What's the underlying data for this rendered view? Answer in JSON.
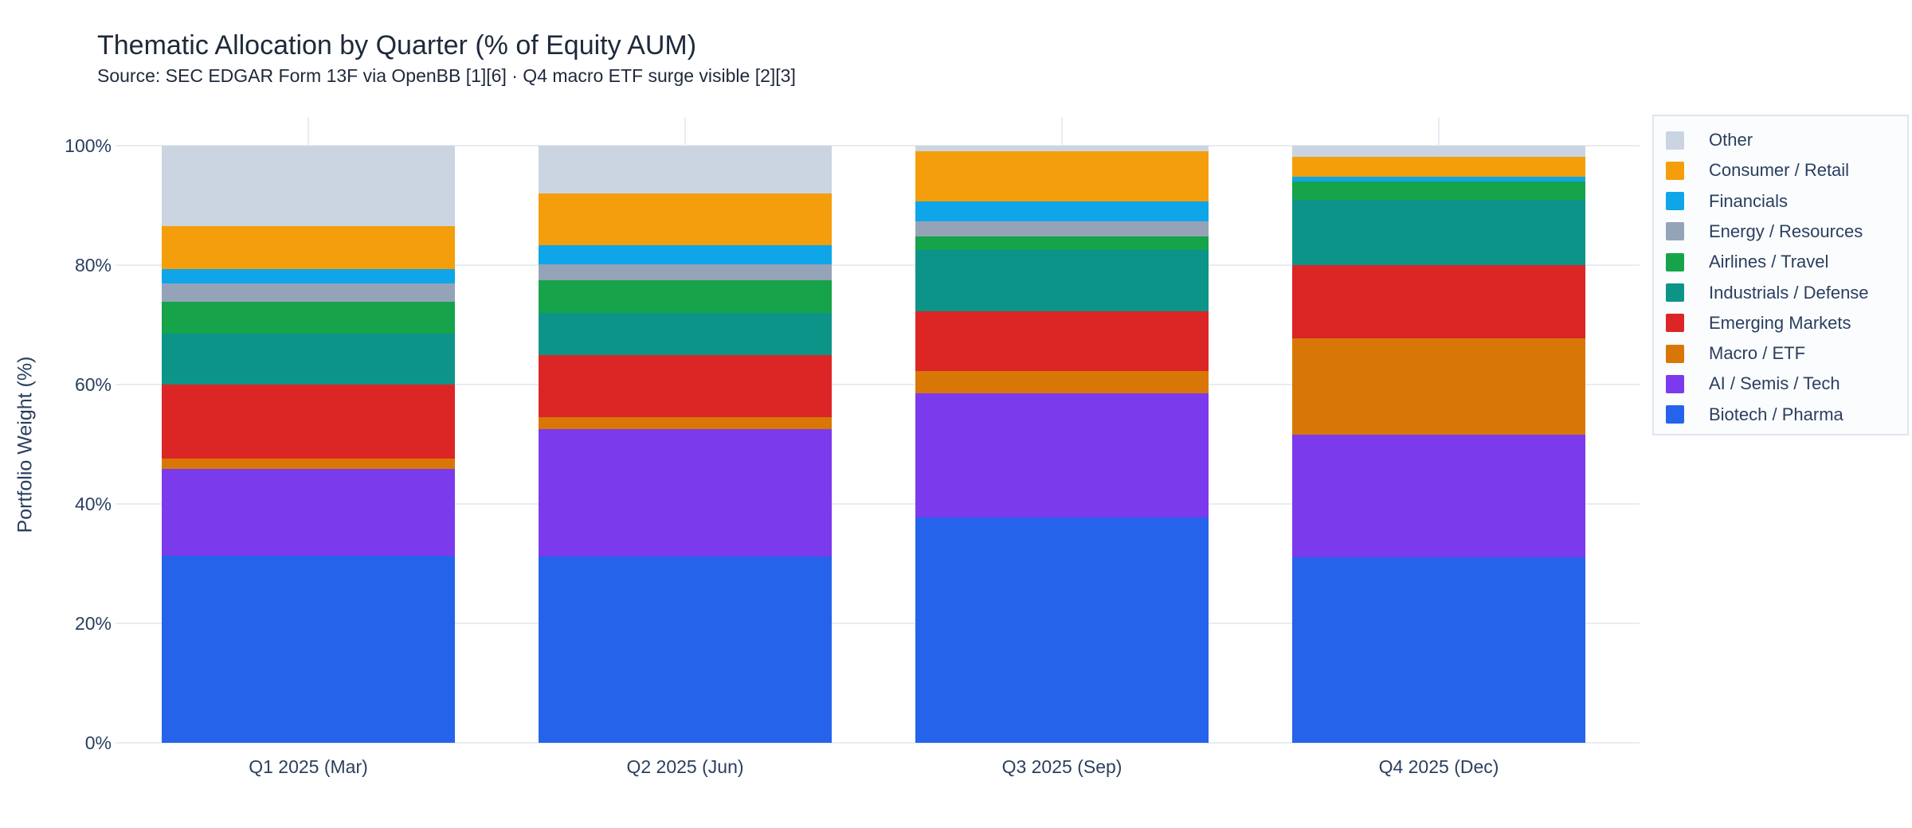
{
  "header": {
    "title": "Thematic Allocation by Quarter (% of Equity AUM)",
    "subtitle": "Source: SEC EDGAR Form 13F via OpenBB [1][6] · Q4 macro ETF surge visible [2][3]"
  },
  "y_axis": {
    "title": "Portfolio Weight (%)",
    "tick_values": [
      0,
      20,
      40,
      60,
      80,
      100
    ],
    "tick_labels": [
      "0%",
      "20%",
      "40%",
      "60%",
      "80%",
      "100%"
    ]
  },
  "chart_data": {
    "type": "bar",
    "stacked": true,
    "title": "Thematic Allocation by Quarter (% of Equity AUM)",
    "subtitle": "Source: SEC EDGAR Form 13F via OpenBB [1][6] · Q4 macro ETF surge visible [2][3]",
    "xlabel": "",
    "ylabel": "Portfolio Weight (%)",
    "ylim": [
      0,
      100
    ],
    "grid": true,
    "legend_position": "right",
    "legend_order": "top-of-stack-first",
    "categories": [
      "Q1 2025 (Mar)",
      "Q2 2025 (Jun)",
      "Q3 2025 (Sep)",
      "Q4 2025 (Dec)"
    ],
    "series": [
      {
        "name": "Biotech / Pharma",
        "color": "#2563EB",
        "values": [
          31.3,
          31.2,
          37.8,
          31.1
        ]
      },
      {
        "name": "AI / Semis / Tech",
        "color": "#7C3AED",
        "values": [
          14.6,
          21.4,
          20.7,
          20.5
        ]
      },
      {
        "name": "Macro / ETF",
        "color": "#D97706",
        "values": [
          1.7,
          2.0,
          3.8,
          16.2
        ]
      },
      {
        "name": "Emerging Markets",
        "color": "#DC2626",
        "values": [
          12.4,
          10.3,
          10.0,
          12.2
        ]
      },
      {
        "name": "Industrials / Defense",
        "color": "#0D9488",
        "values": [
          8.5,
          7.1,
          10.2,
          10.9
        ]
      },
      {
        "name": "Airlines / Travel",
        "color": "#16A34A",
        "values": [
          5.4,
          5.5,
          2.3,
          3.1
        ]
      },
      {
        "name": "Energy / Resources",
        "color": "#94A3B8",
        "values": [
          3.0,
          2.7,
          2.6,
          0.0
        ]
      },
      {
        "name": "Financials",
        "color": "#0EA5E9",
        "values": [
          2.4,
          3.2,
          3.3,
          0.8
        ]
      },
      {
        "name": "Consumer / Retail",
        "color": "#F59E0B",
        "values": [
          7.2,
          8.6,
          8.4,
          3.3
        ]
      },
      {
        "name": "Other",
        "color": "#CBD5E1",
        "values": [
          13.5,
          8.0,
          0.9,
          1.9
        ]
      }
    ]
  },
  "colors": {
    "text": "#2a3f5f",
    "grid": "#e8ecf4",
    "legend_border": "#dfe5ef",
    "legend_background": "#fbfcfe",
    "background": "#ffffff"
  }
}
